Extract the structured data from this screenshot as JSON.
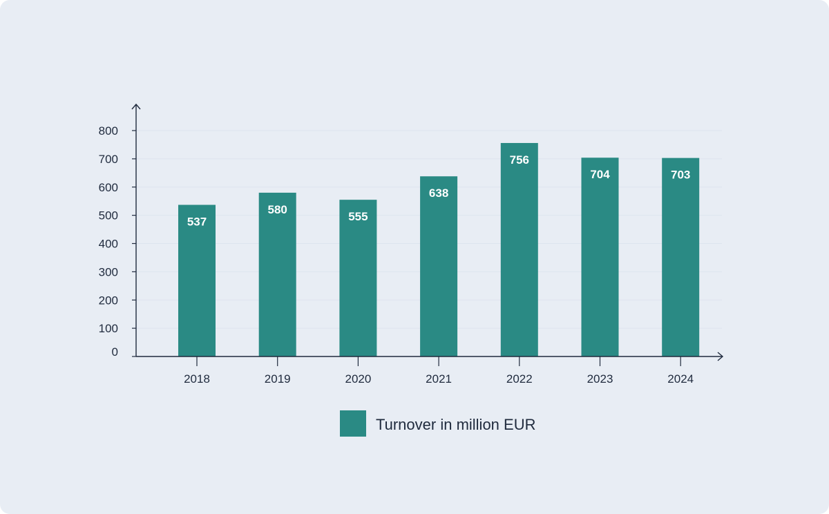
{
  "chart_data": {
    "type": "bar",
    "categories": [
      "2018",
      "2019",
      "2020",
      "2021",
      "2022",
      "2023",
      "2024"
    ],
    "series": [
      {
        "name": "Turnover in million EUR",
        "values": [
          537,
          580,
          555,
          638,
          756,
          704,
          703
        ],
        "color": "#2a8a84"
      }
    ],
    "title": "",
    "xlabel": "",
    "ylabel": "",
    "ylim": [
      0,
      800
    ],
    "yticks": [
      "0",
      "100",
      "200",
      "300",
      "400",
      "500",
      "600",
      "700",
      "800"
    ],
    "grid": true,
    "data_labels": [
      "537",
      "580",
      "555",
      "638",
      "756",
      "704",
      "703"
    ],
    "legend_position": "bottom-center"
  },
  "colors": {
    "background": "#e8edf4",
    "axis": "#1f2a3d",
    "gridline": "#dde4ee",
    "bar": "#2a8a84",
    "bar_label": "#ffffff"
  }
}
